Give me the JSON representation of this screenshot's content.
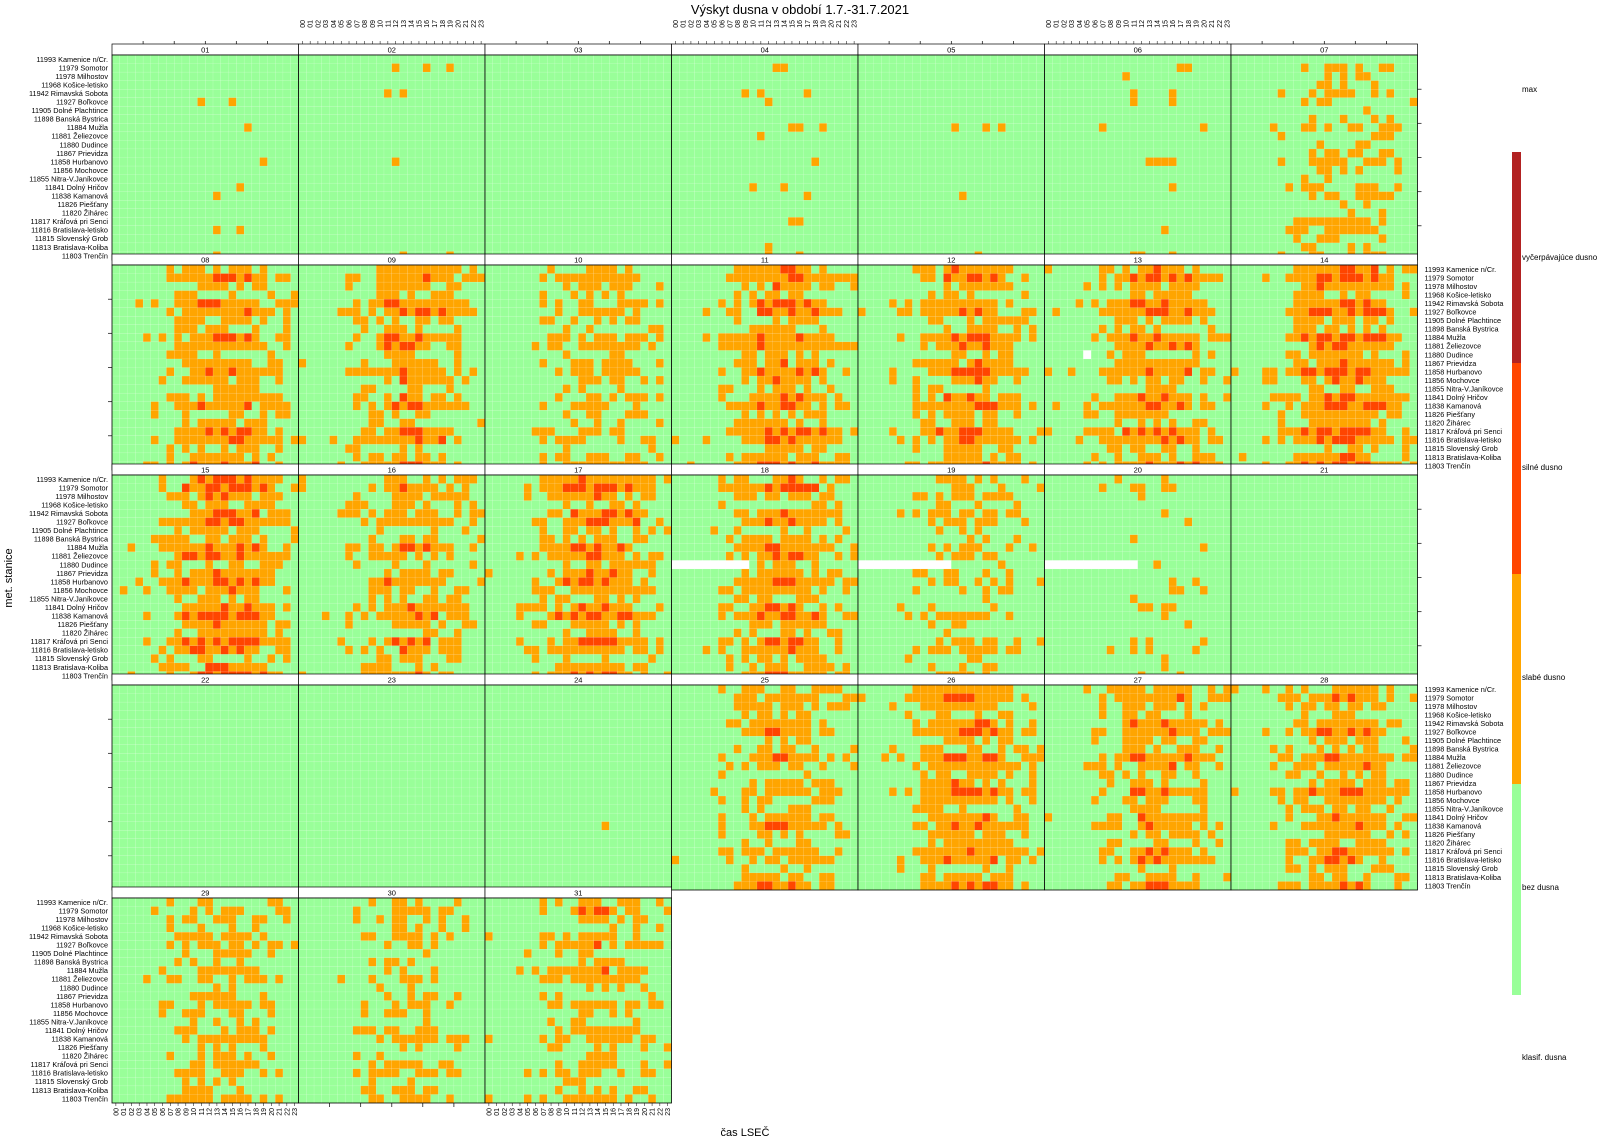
{
  "chart_data": {
    "type": "heatmap",
    "title": "Výskyt dusna v období 1.7.-31.7.2021",
    "xlabel": "čas LSEČ",
    "ylabel": "met. stanice",
    "hours": [
      "00",
      "01",
      "02",
      "03",
      "04",
      "05",
      "06",
      "07",
      "08",
      "09",
      "10",
      "11",
      "12",
      "13",
      "14",
      "15",
      "16",
      "17",
      "18",
      "19",
      "20",
      "21",
      "22",
      "23"
    ],
    "days": [
      "01",
      "02",
      "03",
      "04",
      "05",
      "06",
      "07",
      "08",
      "09",
      "10",
      "11",
      "12",
      "13",
      "14",
      "15",
      "16",
      "17",
      "18",
      "19",
      "20",
      "21",
      "22",
      "23",
      "24",
      "25",
      "26",
      "27",
      "28",
      "29",
      "30",
      "31"
    ],
    "stations": [
      "11993 Kamenice n/Cr.",
      "11979 Somotor",
      "11978 Milhostov",
      "11968 Košice-letisko",
      "11942 Rimavská Sobota",
      "11927 Boľkovce",
      "11905 Dolné Plachtince",
      "11898 Banská Bystrica",
      "11884 Mužla",
      "11881 Želiezovce",
      "11880 Dudince",
      "11867 Prievidza",
      "11858 Hurbanovo",
      "11856 Mochovce",
      "11855 Nitra-V.Janíkovce",
      "11841 Dolný Hričov",
      "11838 Kamanová",
      "11826 Piešťany",
      "11820 Žihárec",
      "11817 Kráľová pri Senci",
      "11816 Bratislava-letisko",
      "11815 Slovenský Grob",
      "11813 Bratislava-Koliba",
      "11803 Trenčín"
    ],
    "legend": {
      "title": "klasif. dusna",
      "max_label": "max",
      "classes": [
        {
          "label": "bez dusna",
          "color": "#99ff99"
        },
        {
          "label": "slabé dusno",
          "color": "#ffa500"
        },
        {
          "label": "silné dusno",
          "color": "#ff4500"
        },
        {
          "label": "vyčerpávajúce dusno",
          "color": "#b22222"
        }
      ],
      "position": "right"
    },
    "missing_color": "#ffffff",
    "day_level": [
      0.15,
      0.15,
      0.08,
      0.18,
      0.15,
      0.25,
      0.6,
      1.05,
      1.05,
      0.75,
      1.15,
      1.1,
      1.15,
      1.35,
      1.3,
      0.95,
      1.2,
      1.1,
      0.65,
      0.3,
      0.1,
      0.04,
      0.06,
      0.12,
      0.9,
      1.1,
      1.0,
      1.05,
      0.75,
      0.65,
      0.85
    ]
  }
}
